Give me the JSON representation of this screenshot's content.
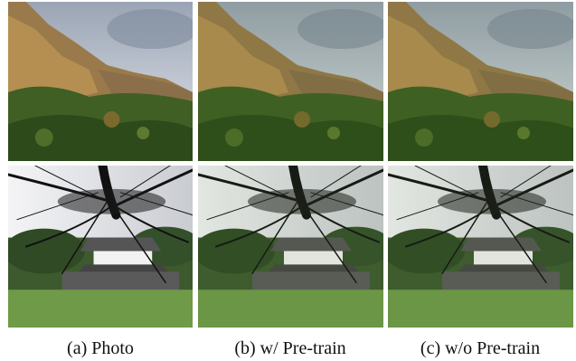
{
  "figure": {
    "captions": [
      "(a) Photo",
      "(b) w/ Pre-train",
      "(c) w/o Pre-train"
    ]
  }
}
